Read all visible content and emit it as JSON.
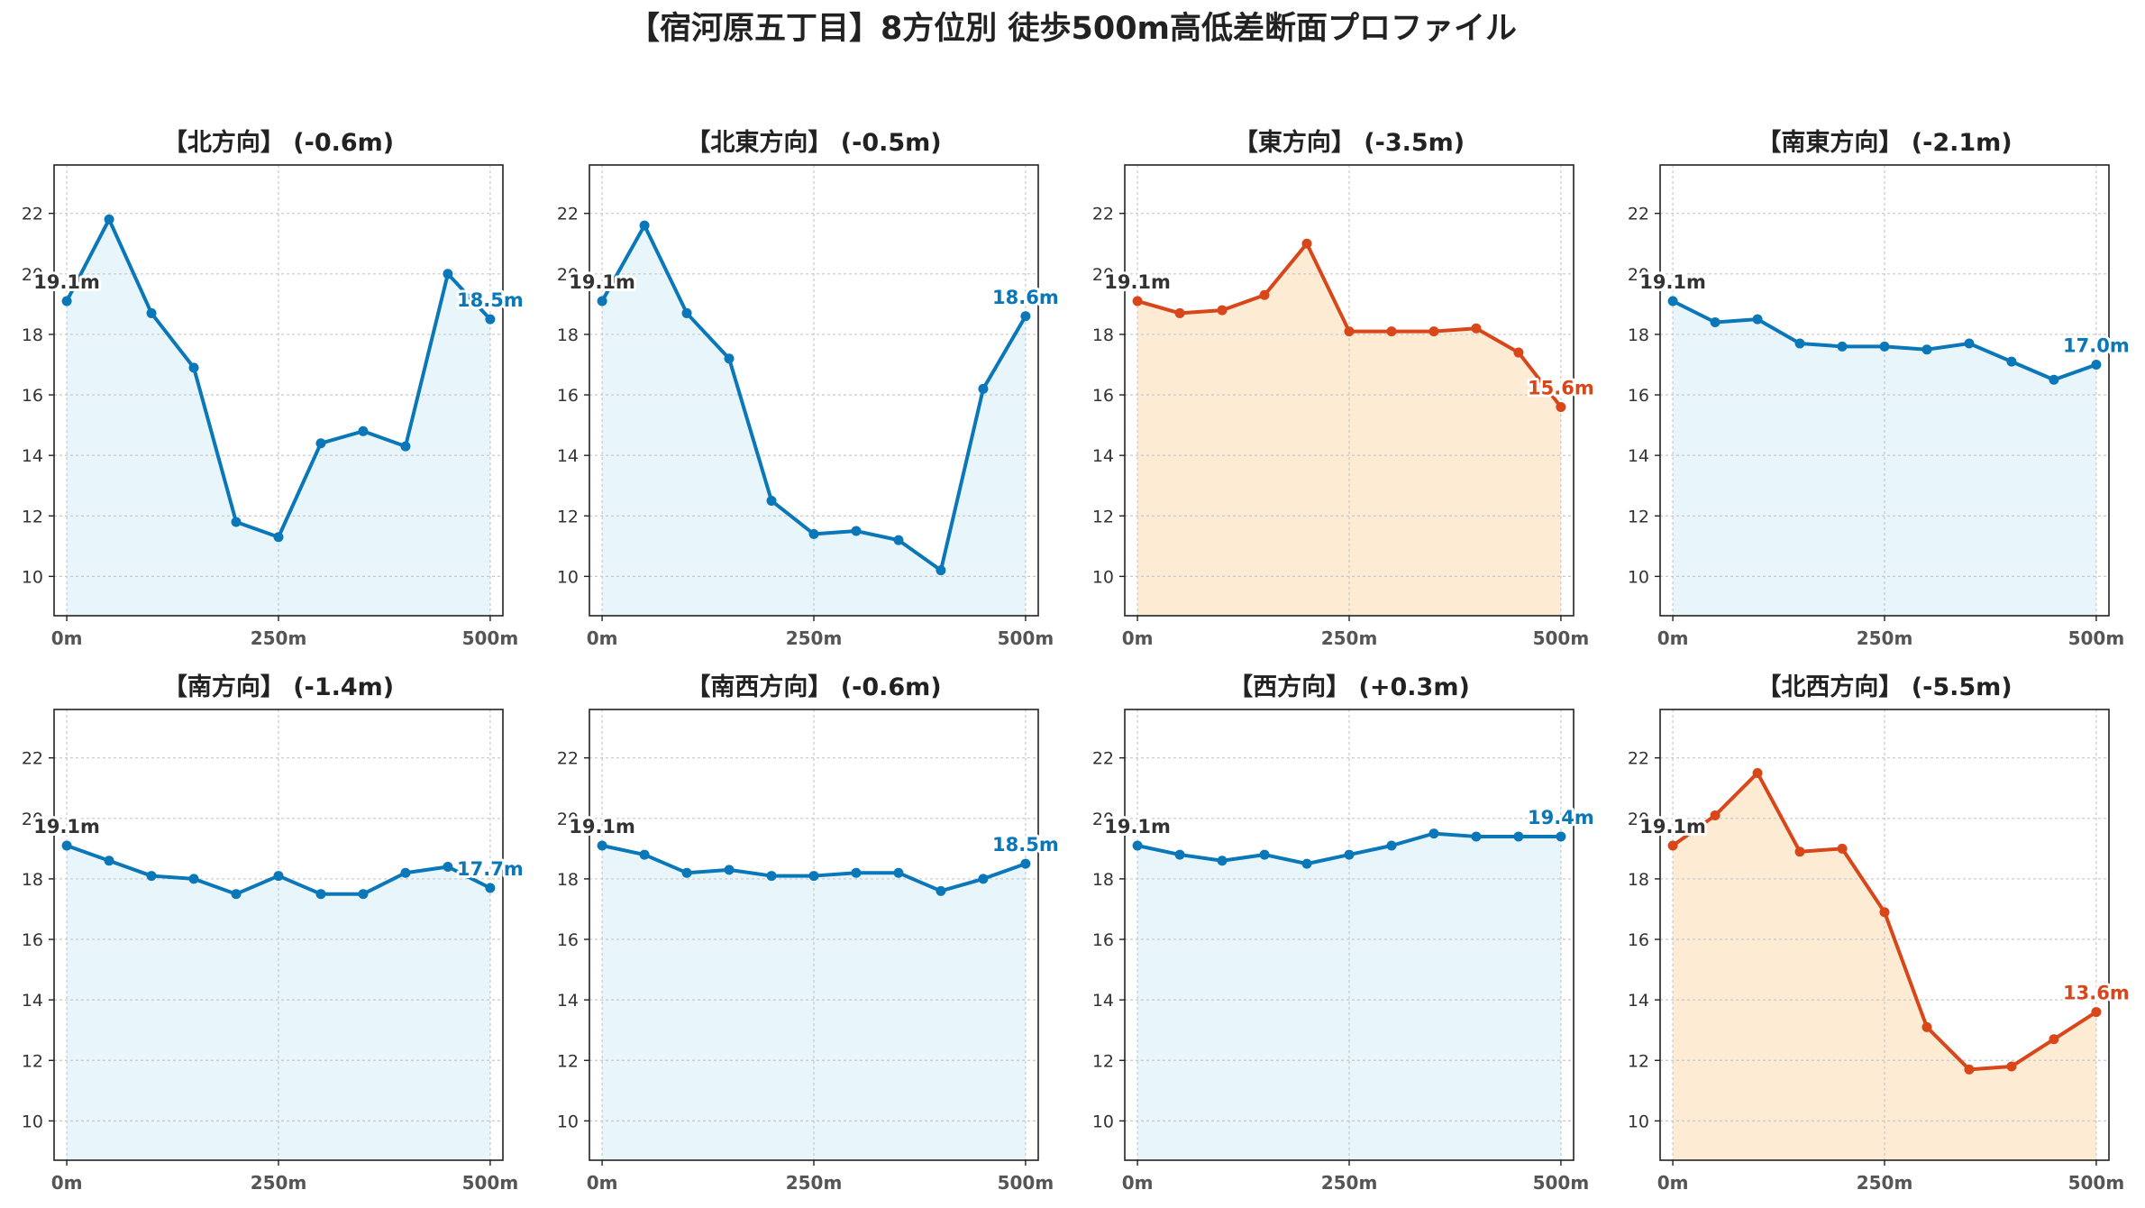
{
  "title": "【宿河原五丁目】8方位別 徒歩500m高低差断面プロファイル",
  "colors": {
    "up": "#0a77b8",
    "down": "#d8461a",
    "fill_up": "#e8f6fb",
    "fill_down": "#fdebd3",
    "start_label": "#333333"
  },
  "chart_data": [
    {
      "type": "line",
      "title": "【北方向】 (-0.6m)",
      "trend": "up",
      "x": [
        0,
        50,
        100,
        150,
        200,
        250,
        300,
        350,
        400,
        450,
        500
      ],
      "y": [
        19.1,
        21.8,
        18.7,
        16.9,
        11.8,
        11.3,
        14.4,
        14.8,
        14.3,
        20.0,
        18.5
      ],
      "start_label": "19.1m",
      "end_label": "18.5m"
    },
    {
      "type": "line",
      "title": "【北東方向】 (-0.5m)",
      "trend": "up",
      "x": [
        0,
        50,
        100,
        150,
        200,
        250,
        300,
        350,
        400,
        450,
        500
      ],
      "y": [
        19.1,
        21.6,
        18.7,
        17.2,
        12.5,
        11.4,
        11.5,
        11.2,
        10.2,
        16.2,
        18.6
      ],
      "start_label": "19.1m",
      "end_label": "18.6m"
    },
    {
      "type": "line",
      "title": "【東方向】 (-3.5m)",
      "trend": "down",
      "x": [
        0,
        50,
        100,
        150,
        200,
        250,
        300,
        350,
        400,
        450,
        500
      ],
      "y": [
        19.1,
        18.7,
        18.8,
        19.3,
        21.0,
        18.1,
        18.1,
        18.1,
        18.2,
        17.4,
        15.6
      ],
      "start_label": "19.1m",
      "end_label": "15.6m"
    },
    {
      "type": "line",
      "title": "【南東方向】 (-2.1m)",
      "trend": "up",
      "x": [
        0,
        50,
        100,
        150,
        200,
        250,
        300,
        350,
        400,
        450,
        500
      ],
      "y": [
        19.1,
        18.4,
        18.5,
        17.7,
        17.6,
        17.6,
        17.5,
        17.7,
        17.1,
        16.5,
        17.0
      ],
      "start_label": "19.1m",
      "end_label": "17.0m"
    },
    {
      "type": "line",
      "title": "【南方向】 (-1.4m)",
      "trend": "up",
      "x": [
        0,
        50,
        100,
        150,
        200,
        250,
        300,
        350,
        400,
        450,
        500
      ],
      "y": [
        19.1,
        18.6,
        18.1,
        18.0,
        17.5,
        18.1,
        17.5,
        17.5,
        18.2,
        18.4,
        17.7
      ],
      "start_label": "19.1m",
      "end_label": "17.7m"
    },
    {
      "type": "line",
      "title": "【南西方向】 (-0.6m)",
      "trend": "up",
      "x": [
        0,
        50,
        100,
        150,
        200,
        250,
        300,
        350,
        400,
        450,
        500
      ],
      "y": [
        19.1,
        18.8,
        18.2,
        18.3,
        18.1,
        18.1,
        18.2,
        18.2,
        17.6,
        18.0,
        18.5
      ],
      "start_label": "19.1m",
      "end_label": "18.5m"
    },
    {
      "type": "line",
      "title": "【西方向】 (+0.3m)",
      "trend": "up",
      "x": [
        0,
        50,
        100,
        150,
        200,
        250,
        300,
        350,
        400,
        450,
        500
      ],
      "y": [
        19.1,
        18.8,
        18.6,
        18.8,
        18.5,
        18.8,
        19.1,
        19.5,
        19.4,
        19.4,
        19.4
      ],
      "start_label": "19.1m",
      "end_label": "19.4m"
    },
    {
      "type": "line",
      "title": "【北西方向】 (-5.5m)",
      "trend": "down",
      "x": [
        0,
        50,
        100,
        150,
        200,
        250,
        300,
        350,
        400,
        450,
        500
      ],
      "y": [
        19.1,
        20.1,
        21.5,
        18.9,
        19.0,
        16.9,
        13.1,
        11.7,
        11.8,
        12.7,
        13.6
      ],
      "start_label": "19.1m",
      "end_label": "13.6m"
    }
  ],
  "axes": {
    "ylim": [
      8.7,
      23.6
    ],
    "yticks": [
      "10",
      "12",
      "14",
      "16",
      "18",
      "20",
      "22"
    ],
    "xlim": [
      -15,
      515
    ],
    "xticks": [
      "0m",
      "250m",
      "500m"
    ],
    "grid": true
  }
}
